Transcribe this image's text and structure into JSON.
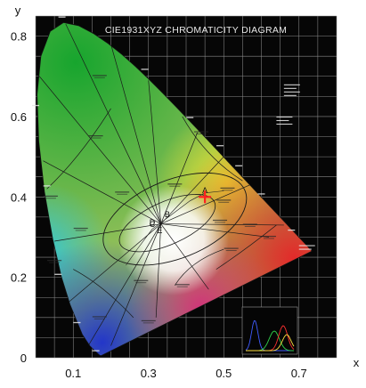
{
  "chart_data": {
    "type": "scatter",
    "title": "CIE1931XYZ CHROMATICITY DIAGRAM",
    "xlabel": "x",
    "ylabel": "y",
    "xlim": [
      0,
      0.8
    ],
    "ylim": [
      0,
      0.85
    ],
    "x_ticks": [
      0.1,
      0.3,
      0.5,
      0.7
    ],
    "y_ticks": [
      0,
      0.2,
      0.4,
      0.6,
      0.8
    ],
    "grid": true,
    "background": "#060606",
    "spectral_locus": [
      [
        0.1741,
        0.005
      ],
      [
        0.1703,
        0.0058
      ],
      [
        0.1644,
        0.0109
      ],
      [
        0.1566,
        0.0177
      ],
      [
        0.144,
        0.0297
      ],
      [
        0.1241,
        0.0578
      ],
      [
        0.0913,
        0.1327
      ],
      [
        0.0687,
        0.2007
      ],
      [
        0.0454,
        0.295
      ],
      [
        0.0235,
        0.4127
      ],
      [
        0.0082,
        0.5384
      ],
      [
        0.0039,
        0.6548
      ],
      [
        0.0139,
        0.7502
      ],
      [
        0.0389,
        0.812
      ],
      [
        0.0743,
        0.8338
      ],
      [
        0.1142,
        0.8262
      ],
      [
        0.1547,
        0.8059
      ],
      [
        0.1929,
        0.7816
      ],
      [
        0.2296,
        0.7543
      ],
      [
        0.2658,
        0.7243
      ],
      [
        0.3016,
        0.6923
      ],
      [
        0.3373,
        0.6589
      ],
      [
        0.3731,
        0.6245
      ],
      [
        0.4087,
        0.5896
      ],
      [
        0.4441,
        0.5547
      ],
      [
        0.4788,
        0.5202
      ],
      [
        0.5125,
        0.4866
      ],
      [
        0.5448,
        0.4544
      ],
      [
        0.5752,
        0.4242
      ],
      [
        0.6029,
        0.3965
      ],
      [
        0.627,
        0.3725
      ],
      [
        0.6482,
        0.3514
      ],
      [
        0.6658,
        0.334
      ],
      [
        0.6801,
        0.3197
      ],
      [
        0.6915,
        0.3083
      ],
      [
        0.7006,
        0.2993
      ],
      [
        0.7079,
        0.292
      ],
      [
        0.714,
        0.2859
      ],
      [
        0.719,
        0.2809
      ],
      [
        0.723,
        0.277
      ],
      [
        0.726,
        0.274
      ],
      [
        0.7347,
        0.2653
      ]
    ],
    "marker": {
      "symbol": "+",
      "x": 0.45,
      "y": 0.4,
      "color": "#ff2020"
    },
    "illuminants": [
      {
        "label": "D",
        "x": 0.31,
        "y": 0.33
      },
      {
        "label": "E",
        "x": 0.33,
        "y": 0.31
      },
      {
        "label": "B",
        "x": 0.35,
        "y": 0.35
      },
      {
        "label": "C",
        "x": 0.31,
        "y": 0.325
      },
      {
        "label": "A",
        "x": 0.45,
        "y": 0.41
      }
    ],
    "colors": {
      "green": "#17a52e",
      "yellow": "#e9e230",
      "red": "#e32a2a",
      "blue": "#2336c9",
      "cyan": "#2ec6d9",
      "magenta": "#d0357a",
      "white": "#ffffff",
      "marker": "#ff2020"
    }
  }
}
